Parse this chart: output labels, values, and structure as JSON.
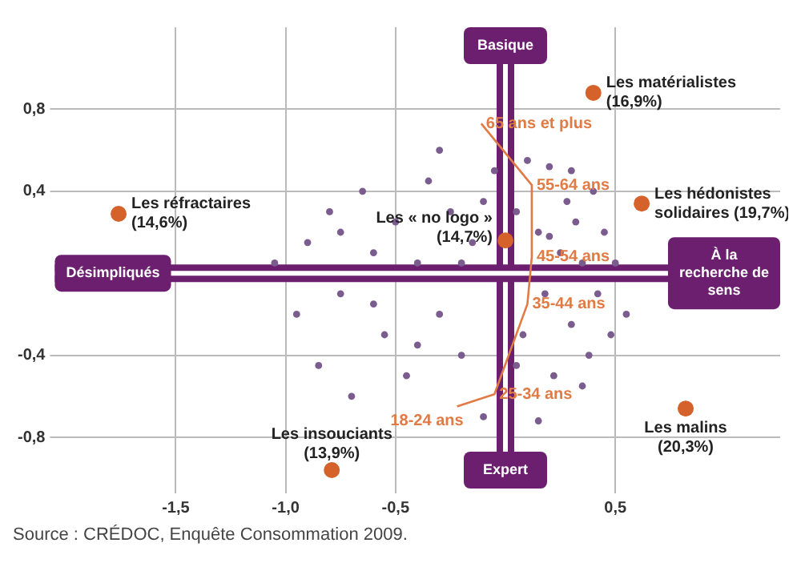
{
  "chart_data": {
    "type": "scatter",
    "xlim": [
      -2.05,
      1.25
    ],
    "ylim": [
      -1.05,
      1.2
    ],
    "xticks": [
      {
        "value": -1.5,
        "label": "-1,5"
      },
      {
        "value": -1,
        "label": "-1,0"
      },
      {
        "value": -0.5,
        "label": "-0,5"
      },
      {
        "value": 0.5,
        "label": "0,5"
      }
    ],
    "yticks": [
      {
        "value": -0.8,
        "label": "-0,8"
      },
      {
        "value": -0.4,
        "label": "-0,4"
      },
      {
        "value": 0.4,
        "label": "0,4"
      },
      {
        "value": 0.8,
        "label": "0,8"
      }
    ],
    "grid": true,
    "legend": false,
    "marker": "circle",
    "ref_lines": [
      {
        "axis": "x",
        "value": 0,
        "color": "#6b1f6e"
      },
      {
        "axis": "y",
        "value": 0,
        "color": "#6b1f6e"
      }
    ],
    "series": [
      {
        "type": "scatter",
        "color": "#7b5c8e",
        "x": [
          -1.05,
          -0.95,
          -0.9,
          -0.85,
          -0.8,
          -0.75,
          -0.7,
          -0.65,
          -0.6,
          -0.55,
          -0.5,
          -0.45,
          -0.4,
          -0.35,
          -0.3,
          -0.25,
          -0.2,
          -0.15,
          -0.1,
          -0.05,
          0.05,
          0.08,
          0.1,
          0.15,
          0.18,
          0.2,
          0.22,
          0.25,
          0.28,
          0.3,
          0.32,
          0.35,
          0.38,
          0.4,
          0.42,
          0.45,
          0.48,
          0.5,
          0.55,
          -0.3,
          -0.6,
          -0.2,
          0.15,
          0.3,
          -0.1,
          0.05,
          -0.4,
          0.35,
          -0.75,
          0.2
        ],
        "values": [
          0.05,
          -0.2,
          0.15,
          -0.45,
          0.3,
          -0.1,
          -0.6,
          0.4,
          0.1,
          -0.3,
          0.25,
          -0.5,
          0.05,
          0.45,
          -0.2,
          0.3,
          -0.4,
          0.15,
          -0.7,
          0.5,
          0.3,
          -0.3,
          0.55,
          0.2,
          -0.1,
          0.52,
          -0.5,
          0.1,
          0.35,
          -0.25,
          0.25,
          0.05,
          -0.4,
          0.4,
          -0.1,
          0.2,
          -0.3,
          0.05,
          -0.2,
          0.6,
          -0.15,
          0.05,
          -0.72,
          0.5,
          0.35,
          -0.45,
          -0.35,
          -0.55,
          0.2,
          0.18
        ]
      },
      {
        "type": "line",
        "color": "#e07b45",
        "marker": "none",
        "x": [
          -0.11,
          0.12,
          0.12,
          0.1,
          -0.05,
          -0.22
        ],
        "values": [
          0.73,
          0.43,
          0.08,
          -0.15,
          -0.59,
          -0.65
        ]
      },
      {
        "type": "scatter",
        "name": "Les matérialistes (16,9%)",
        "color": "#d4622a",
        "x": [
          0.4
        ],
        "values": [
          0.88
        ]
      },
      {
        "type": "scatter",
        "name": "Les réfractaires (14,6%)",
        "color": "#d4622a",
        "x": [
          -1.76
        ],
        "values": [
          0.29
        ]
      },
      {
        "type": "scatter",
        "name": "Les hédonistes solidaires (19,7%)",
        "color": "#d4622a",
        "x": [
          0.62
        ],
        "values": [
          0.34
        ]
      },
      {
        "type": "scatter",
        "name": "Les « no logo » (14,7%)",
        "color": "#d4622a",
        "x": [
          0
        ],
        "values": [
          0.16
        ]
      },
      {
        "type": "scatter",
        "name": "Les insouciants (13,9%)",
        "color": "#d4622a",
        "x": [
          -0.79
        ],
        "values": [
          -0.96
        ]
      },
      {
        "type": "scatter",
        "name": "Les malins (20,3%)",
        "color": "#d4622a",
        "x": [
          0.82
        ],
        "values": [
          -0.66
        ]
      }
    ],
    "annotations": [
      "Basique",
      "Expert",
      "Désimpliqués",
      "À la recherche de sens",
      {
        "text": "65 ans et plus",
        "x": -0.11,
        "y": 0.73
      },
      {
        "text": "55-64 ans",
        "x": 0.12,
        "y": 0.43
      },
      {
        "text": "45-54 ans",
        "x": 0.12,
        "y": 0.08
      },
      {
        "text": "35-44 ans",
        "x": 0.1,
        "y": -0.15
      },
      {
        "text": "25-34 ans",
        "x": -0.05,
        "y": -0.59
      },
      {
        "text": "18-24 ans",
        "x": -0.22,
        "y": -0.65
      },
      "Source : CRÉDOC, Enquête Consommation 2009."
    ]
  }
}
